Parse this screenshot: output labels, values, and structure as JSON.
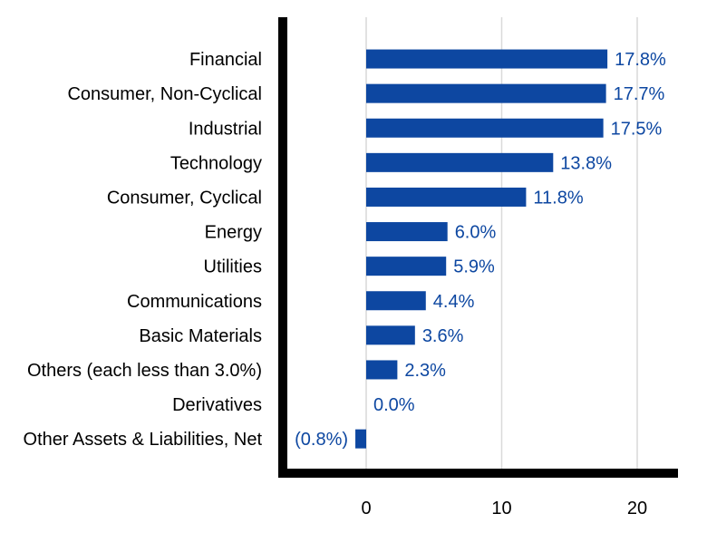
{
  "chart_data": {
    "type": "bar",
    "orientation": "horizontal",
    "title": "",
    "xlabel": "",
    "ylabel": "",
    "categories": [
      "Financial",
      "Consumer, Non-Cyclical",
      "Industrial",
      "Technology",
      "Consumer, Cyclical",
      "Energy",
      "Utilities",
      "Communications",
      "Basic Materials",
      "Others (each less than 3.0%)",
      "Derivatives",
      "Other Assets & Liabilities, Net"
    ],
    "values": [
      17.8,
      17.7,
      17.5,
      13.8,
      11.8,
      6.0,
      5.9,
      4.4,
      3.6,
      2.3,
      0.0,
      -0.8
    ],
    "value_labels": [
      "17.8%",
      "17.7%",
      "17.5%",
      "13.8%",
      "11.8%",
      "6.0%",
      "5.9%",
      "4.4%",
      "3.6%",
      "2.3%",
      "0.0%",
      "(0.8%)"
    ],
    "xlim": [
      -6.4,
      23
    ],
    "xticks": [
      0,
      10,
      20
    ],
    "xtick_labels": [
      "0",
      "10",
      "20"
    ],
    "grid": "vertical",
    "legend": "none",
    "colors": {
      "bar": "#0d47a1",
      "value_label": "#0d47a1",
      "axis": "#000000",
      "grid": "#d9d9d9",
      "category_label": "#000000"
    }
  }
}
